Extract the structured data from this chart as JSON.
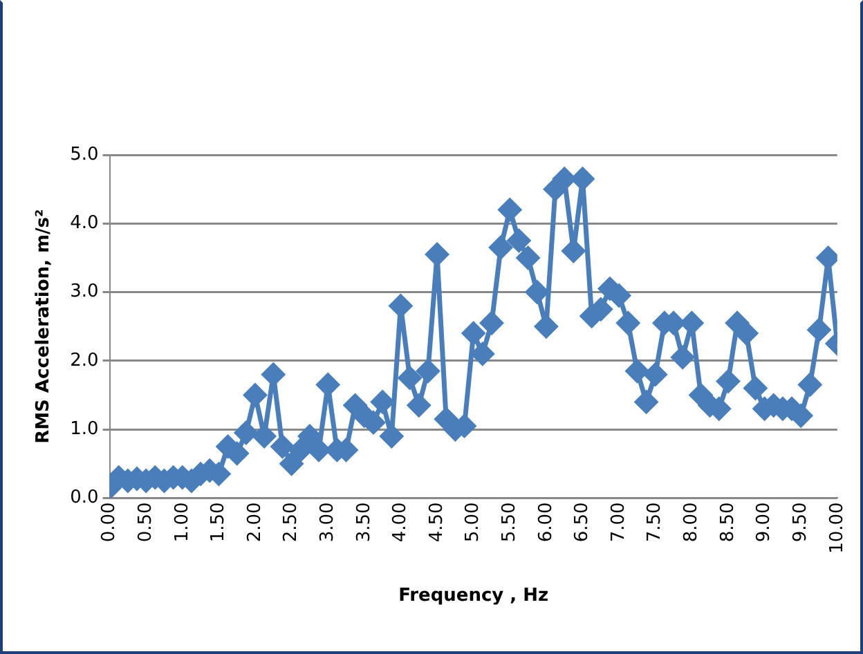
{
  "chart_data": {
    "type": "line",
    "xlabel": "Frequency , Hz",
    "ylabel": "RMS Acceleration, m/s²",
    "x": [
      0,
      0.125,
      0.25,
      0.375,
      0.5,
      0.625,
      0.75,
      0.875,
      1,
      1.125,
      1.25,
      1.375,
      1.5,
      1.625,
      1.75,
      1.875,
      2,
      2.125,
      2.25,
      2.375,
      2.5,
      2.625,
      2.75,
      2.875,
      3,
      3.125,
      3.25,
      3.375,
      3.5,
      3.625,
      3.75,
      3.875,
      4,
      4.125,
      4.25,
      4.375,
      4.5,
      4.625,
      4.75,
      4.875,
      5,
      5.125,
      5.25,
      5.375,
      5.5,
      5.625,
      5.75,
      5.875,
      6,
      6.125,
      6.25,
      6.375,
      6.5,
      6.625,
      6.75,
      6.875,
      7,
      7.125,
      7.25,
      7.375,
      7.5,
      7.625,
      7.75,
      7.875,
      8,
      8.125,
      8.25,
      8.375,
      8.5,
      8.625,
      8.75,
      8.875,
      9,
      9.125,
      9.25,
      9.375,
      9.5,
      9.625,
      9.75,
      9.875,
      10
    ],
    "series": [
      {
        "color": "#4a7ebb",
        "values": [
          0.15,
          0.3,
          0.25,
          0.28,
          0.25,
          0.3,
          0.25,
          0.3,
          0.3,
          0.25,
          0.35,
          0.4,
          0.35,
          0.75,
          0.65,
          0.95,
          1.5,
          0.9,
          1.8,
          0.75,
          0.5,
          0.7,
          0.9,
          0.7,
          1.65,
          0.7,
          0.7,
          1.35,
          1.2,
          1.1,
          1.4,
          0.9,
          2.8,
          1.75,
          1.35,
          1.85,
          3.55,
          1.15,
          1.0,
          1.05,
          2.4,
          2.1,
          2.55,
          3.65,
          4.2,
          3.75,
          3.5,
          3.0,
          2.5,
          4.5,
          4.65,
          3.6,
          4.65,
          2.65,
          2.75,
          3.05,
          2.95,
          2.55,
          1.85,
          1.4,
          1.8,
          2.55,
          2.55,
          2.05,
          2.55,
          1.5,
          1.35,
          1.3,
          1.7,
          2.55,
          2.4,
          1.6,
          1.3,
          1.35,
          1.3,
          1.3,
          1.2,
          1.65,
          2.45,
          3.5,
          2.25
        ]
      }
    ],
    "xlim": [
      0,
      10
    ],
    "xticks": [
      {
        "value": 0,
        "label": "0.00"
      },
      {
        "value": 0.5,
        "label": "0.50"
      },
      {
        "value": 1,
        "label": "1.00"
      },
      {
        "value": 1.5,
        "label": "1.50"
      },
      {
        "value": 2,
        "label": "2.00"
      },
      {
        "value": 2.5,
        "label": "2.50"
      },
      {
        "value": 3,
        "label": "3.00"
      },
      {
        "value": 3.5,
        "label": "3.50"
      },
      {
        "value": 4,
        "label": "4.00"
      },
      {
        "value": 4.5,
        "label": "4.50"
      },
      {
        "value": 5,
        "label": "5.00"
      },
      {
        "value": 5.5,
        "label": "5.50"
      },
      {
        "value": 6,
        "label": "6.00"
      },
      {
        "value": 6.5,
        "label": "6.50"
      },
      {
        "value": 7,
        "label": "7.00"
      },
      {
        "value": 7.5,
        "label": "7.50"
      },
      {
        "value": 8,
        "label": "8.00"
      },
      {
        "value": 8.5,
        "label": "8.50"
      },
      {
        "value": 9,
        "label": "9.00"
      },
      {
        "value": 9.5,
        "label": "9.50"
      },
      {
        "value": 10,
        "label": "10.00"
      }
    ],
    "ylim": [
      0,
      5
    ],
    "yticks": [
      {
        "value": 0,
        "label": "0.0"
      },
      {
        "value": 1,
        "label": "1.0"
      },
      {
        "value": 2,
        "label": "2.0"
      },
      {
        "value": 3,
        "label": "3.0"
      },
      {
        "value": 4,
        "label": "4.0"
      },
      {
        "value": 5,
        "label": "5.0"
      }
    ],
    "grid": "y",
    "marker": "diamond",
    "line_style": "solid"
  }
}
